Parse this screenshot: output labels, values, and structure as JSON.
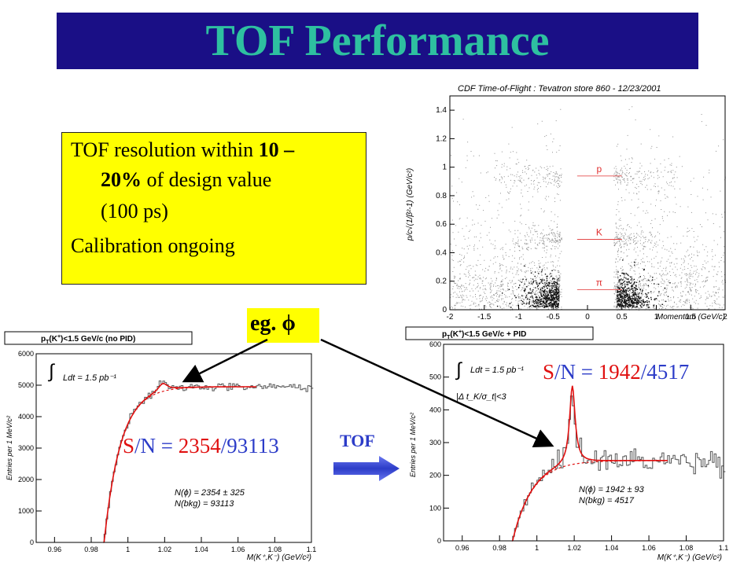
{
  "title": "TOF Performance",
  "bullets": {
    "b1_pre": "TOF resolution within ",
    "b1_bold": "10 –",
    "b1_line2_bold": "20%",
    "b1_line2_rest": " of design value",
    "b1_line3": "(100 ps)",
    "b2": "Calibration ongoing"
  },
  "eg_label": "eg. ϕ",
  "tof_arrow_label": "TOF",
  "sn_left": {
    "prefix": "S",
    "slash": "/N = ",
    "signal": "2354",
    "sep": "/",
    "bkg": "93113"
  },
  "sn_right": {
    "prefix": "S",
    "slash": "/N = ",
    "signal": "1942",
    "sep": "/",
    "bkg": "4517"
  },
  "colors": {
    "title_bg": "#1a0f86",
    "title_text": "#2ec0a0",
    "box": "#ffff00",
    "red": "#e01010",
    "blue": "#2c3cc8"
  },
  "chart_data": [
    {
      "type": "scatter",
      "title": "CDF Time-of-Flight : Tevatron store 860 - 12/23/2001",
      "xlabel": "Momentum (GeV/c)",
      "ylabel": "p/c√(1/β²-1) (GeV/c²)",
      "xlim": [
        -2,
        2
      ],
      "ylim": [
        0,
        1.5
      ],
      "xticks": [
        "-2",
        "-1.5",
        "-1",
        "-0.5",
        "0",
        "0.5",
        "1",
        "1.5",
        "2"
      ],
      "yticks": [
        "0",
        "0.2",
        "0.4",
        "0.6",
        "0.8",
        "1",
        "1.2",
        "1.4"
      ],
      "bands": [
        {
          "label": "p",
          "mass": 0.938
        },
        {
          "label": "K",
          "mass": 0.494
        },
        {
          "label": "π",
          "mass": 0.14
        }
      ]
    },
    {
      "type": "line",
      "title": "p_T(K⁺)<1.5 GeV/c (no PID)",
      "title_parts": {
        "a": "p",
        "b": "T",
        "c": "(K",
        "d": "+",
        "e": ")<1.5 GeV/c (no PID)"
      },
      "xlabel": "M(K⁺,K⁻) (GeV/c²)",
      "ylabel": "Entries per 1 MeV/c²",
      "xlim": [
        0.95,
        1.1
      ],
      "ylim": [
        0,
        6000
      ],
      "xticks": [
        "0.96",
        "0.98",
        "1",
        "1.02",
        "1.04",
        "1.06",
        "1.08",
        "1.1"
      ],
      "yticks": [
        "0",
        "1000",
        "2000",
        "3000",
        "4000",
        "5000",
        "6000"
      ],
      "lumi": "Ldt = 1.5 pb⁻¹",
      "annotations": [
        "N(ϕ) =  2354 ±  325",
        "N(bkg) = 93113"
      ],
      "peak_mass": 1.019,
      "signal": 2354,
      "background": 93113
    },
    {
      "type": "line",
      "title": "p_T(K⁺)<1.5 GeV/c + PID",
      "title_parts": {
        "a": "p",
        "b": "T",
        "c": "(K",
        "d": "+",
        "e": ")<1.5 GeV/c + PID"
      },
      "xlabel": "M(K⁺,K⁻) (GeV/c²)",
      "ylabel": "Entries per 1 MeV/c²",
      "xlim": [
        0.95,
        1.1
      ],
      "ylim": [
        0,
        600
      ],
      "xticks": [
        "0.96",
        "0.98",
        "1",
        "1.02",
        "1.04",
        "1.06",
        "1.08",
        "1.1"
      ],
      "yticks": [
        "0",
        "100",
        "200",
        "300",
        "400",
        "500",
        "600"
      ],
      "lumi": "Ldt = 1.5 pb⁻¹",
      "cut": "|Δ t_K/σ_t|<3",
      "annotations": [
        "N(ϕ) =  1942 ±  93",
        "N(bkg) = 4517"
      ],
      "peak_mass": 1.019,
      "signal": 1942,
      "background": 4517
    }
  ]
}
